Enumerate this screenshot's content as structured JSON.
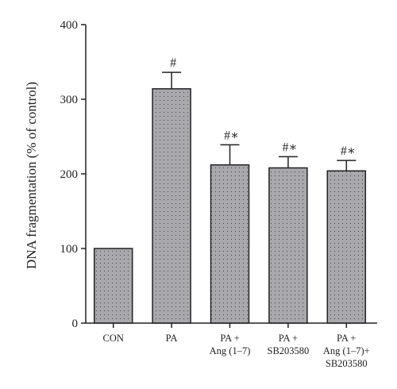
{
  "chart_data": {
    "type": "bar",
    "ylabel": "DNA fragmentation (% of control)",
    "ylim": [
      0,
      400
    ],
    "yticks": [
      0,
      100,
      200,
      300,
      400
    ],
    "categories": [
      [
        "CON"
      ],
      [
        "PA"
      ],
      [
        "PA +",
        "Ang (1–7)"
      ],
      [
        "PA +",
        "SB203580"
      ],
      [
        "PA +",
        "Ang (1–7)+",
        "SB203580"
      ]
    ],
    "values": [
      100,
      314,
      212,
      208,
      204
    ],
    "errors": [
      0,
      22,
      27,
      15,
      14
    ],
    "annotations": [
      "",
      "#",
      "#∗",
      "#∗",
      "#∗"
    ],
    "grid": false,
    "bar_color": "#a9a9ad"
  }
}
